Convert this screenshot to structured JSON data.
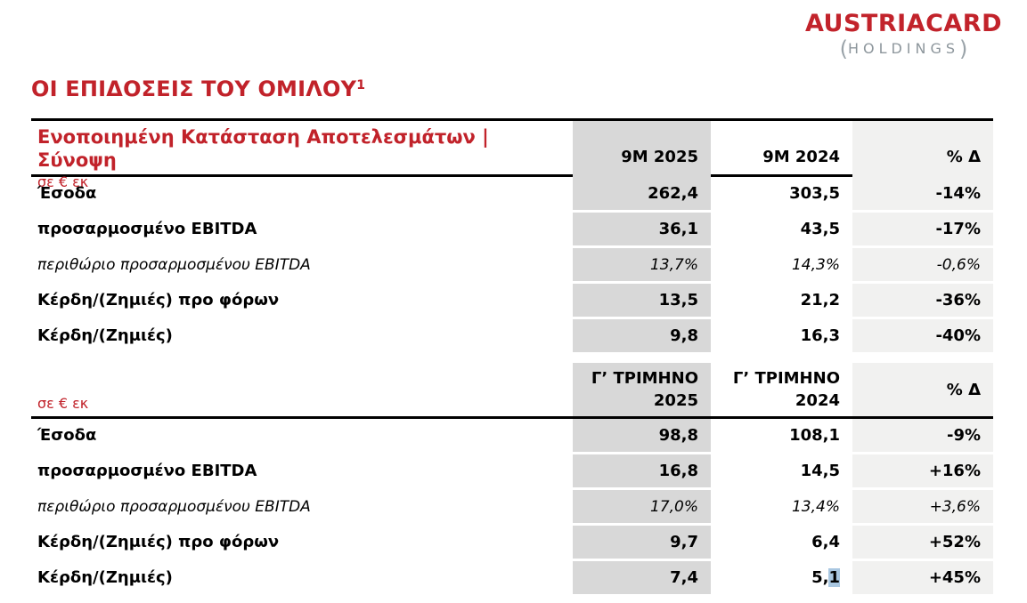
{
  "logo": {
    "brand_part1": "AUSTRIA",
    "brand_part2": "CARD",
    "paren_open": "(",
    "holdings": "HOLDINGS",
    "paren_close": ")"
  },
  "page_title": {
    "text": "ΟΙ ΕΠΙΔΟΣΕΙΣ ΤΟΥ ΟΜΙΛΟΥ",
    "superscript": "1"
  },
  "colors": {
    "brand_red": "#C1222A",
    "logo_gray": "#8D969C",
    "column_gray": "#D8D8D8",
    "column_light_gray": "#F1F1F0",
    "selection_highlight_blue": "#A9C7E1",
    "border_black": "#000000"
  },
  "table1": {
    "title": "Ενοποιημένη Κατάσταση Αποτελεσμάτων | Σύνοψη",
    "unit": "σε € εκ",
    "col1": "9M 2025",
    "col2": "9M 2024",
    "col3": "% Δ",
    "rows": [
      {
        "label": "Έσοδα",
        "v1": "262,4",
        "v2": "303,5",
        "delta": "-14%"
      },
      {
        "label": "προσαρμοσμένο EBITDA",
        "v1": "36,1",
        "v2": "43,5",
        "delta": "-17%"
      },
      {
        "label": "περιθώριο προσαρμοσμένου EBITDA",
        "v1": "13,7%",
        "v2": "14,3%",
        "delta": "-0,6%"
      },
      {
        "label": "Κέρδη/(Ζημιές) προ φόρων",
        "v1": "13,5",
        "v2": "21,2",
        "delta": "-36%"
      },
      {
        "label": "Κέρδη/(Ζημιές)",
        "v1": "9,8",
        "v2": "16,3",
        "delta": "-40%"
      }
    ]
  },
  "table2": {
    "unit": "σε € εκ",
    "col1_line1": "Γ’ ΤΡΙΜΗΝΟ",
    "col1_line2": "2025",
    "col2_line1": "Γ’ ΤΡΙΜΗΝΟ",
    "col2_line2": "2024",
    "col3": "% Δ",
    "rows": [
      {
        "label": "Έσοδα",
        "v1": "98,8",
        "v2": "108,1",
        "delta": "-9%"
      },
      {
        "label": "προσαρμοσμένο EBITDA",
        "v1": "16,8",
        "v2": "14,5",
        "delta": "+16%"
      },
      {
        "label": "περιθώριο προσαρμοσμένου EBITDA",
        "v1": "17,0%",
        "v2": "13,4%",
        "delta": "+3,6%"
      },
      {
        "label": "Κέρδη/(Ζημιές) προ φόρων",
        "v1": "9,7",
        "v2": "6,4",
        "delta": "+52%"
      },
      {
        "label": "Κέρδη/(Ζημιές)",
        "v1": "7,4",
        "v2_prefix": "5,",
        "v2_highlight": "1",
        "delta": "+45%"
      }
    ]
  }
}
